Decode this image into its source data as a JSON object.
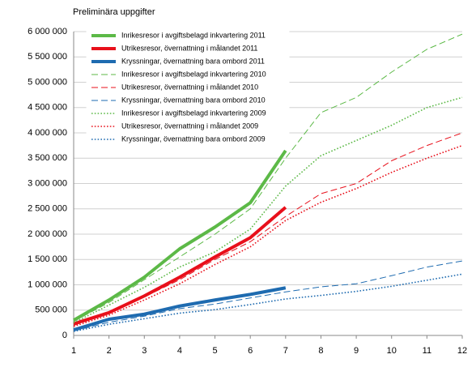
{
  "chart_data": {
    "type": "line",
    "title": "Preliminära uppgifter",
    "x": [
      1,
      2,
      3,
      4,
      5,
      6,
      7,
      8,
      9,
      10,
      11,
      12
    ],
    "xlim": [
      1,
      12
    ],
    "xticks": [
      1,
      2,
      3,
      4,
      5,
      6,
      7,
      8,
      9,
      10,
      11,
      12
    ],
    "ylim": [
      0,
      6000000
    ],
    "yticks": [
      0,
      {
        "value": 500000,
        "label": "500 000"
      },
      {
        "value": 1000000,
        "label": "1 000 000"
      },
      {
        "value": 1500000,
        "label": "1 500 000"
      },
      {
        "value": 2000000,
        "label": "2 000 000"
      },
      {
        "value": 2500000,
        "label": "2 500 000"
      },
      {
        "value": 3000000,
        "label": "3 000 000"
      },
      {
        "value": 3500000,
        "label": "3 500 000"
      },
      {
        "value": 4000000,
        "label": "4 000 000"
      },
      {
        "value": 4500000,
        "label": "4 500 000"
      },
      {
        "value": 5000000,
        "label": "5 000 000"
      },
      {
        "value": 5500000,
        "label": "5 500 000"
      },
      {
        "value": 6000000,
        "label": "6 000 000"
      }
    ],
    "grid": true,
    "legend": "top-left",
    "series": [
      {
        "name": "Inrikesresor i avgiftsbelagd inkvartering 2011",
        "color": "#5cb947",
        "style": "solid",
        "values": [
          300000,
          700000,
          1150000,
          1710000,
          2140000,
          2620000,
          3650000,
          null,
          null,
          null,
          null,
          null
        ]
      },
      {
        "name": "Utrikesresor, övernattning i målandet 2011",
        "color": "#e8101b",
        "style": "solid",
        "values": [
          230000,
          450000,
          780000,
          1150000,
          1550000,
          1930000,
          2530000,
          null,
          null,
          null,
          null,
          null
        ]
      },
      {
        "name": "Kryssningar, övernattning bara ombord 2011",
        "color": "#1e6bb0",
        "style": "solid",
        "values": [
          110000,
          320000,
          420000,
          580000,
          700000,
          810000,
          940000,
          null,
          null,
          null,
          null,
          null
        ]
      },
      {
        "name": "Inrikesresor i avgiftsbelagd inkvartering 2010",
        "color": "#5cb947",
        "style": "dashed",
        "values": [
          280000,
          650000,
          1100000,
          1550000,
          2000000,
          2500000,
          3500000,
          4400000,
          4700000,
          5200000,
          5650000,
          5950000
        ]
      },
      {
        "name": "Utrikesresor, övernattning i målandet 2010",
        "color": "#e8101b",
        "style": "dashed",
        "values": [
          200000,
          430000,
          760000,
          1100000,
          1500000,
          1850000,
          2350000,
          2800000,
          3000000,
          3450000,
          3750000,
          4000000
        ]
      },
      {
        "name": "Kryssningar, övernattning bara ombord 2010",
        "color": "#1e6bb0",
        "style": "dashed",
        "values": [
          90000,
          260000,
          380000,
          530000,
          620000,
          740000,
          860000,
          960000,
          1020000,
          1180000,
          1350000,
          1470000
        ]
      },
      {
        "name": "Inrikesresor i avgiftsbelagd inkvartering 2009",
        "color": "#5cb947",
        "style": "dotted",
        "values": [
          250000,
          600000,
          950000,
          1350000,
          1650000,
          2100000,
          2950000,
          3550000,
          3850000,
          4150000,
          4500000,
          4700000
        ]
      },
      {
        "name": "Utrikesresor, övernattning i målandet 2009",
        "color": "#e8101b",
        "style": "dotted",
        "values": [
          180000,
          400000,
          700000,
          1020000,
          1400000,
          1750000,
          2270000,
          2630000,
          2900000,
          3220000,
          3500000,
          3750000
        ]
      },
      {
        "name": "Kryssningar, övernattning bara ombord 2009",
        "color": "#1e6bb0",
        "style": "dotted",
        "values": [
          80000,
          220000,
          330000,
          440000,
          510000,
          610000,
          720000,
          790000,
          870000,
          970000,
          1090000,
          1210000
        ]
      }
    ]
  }
}
